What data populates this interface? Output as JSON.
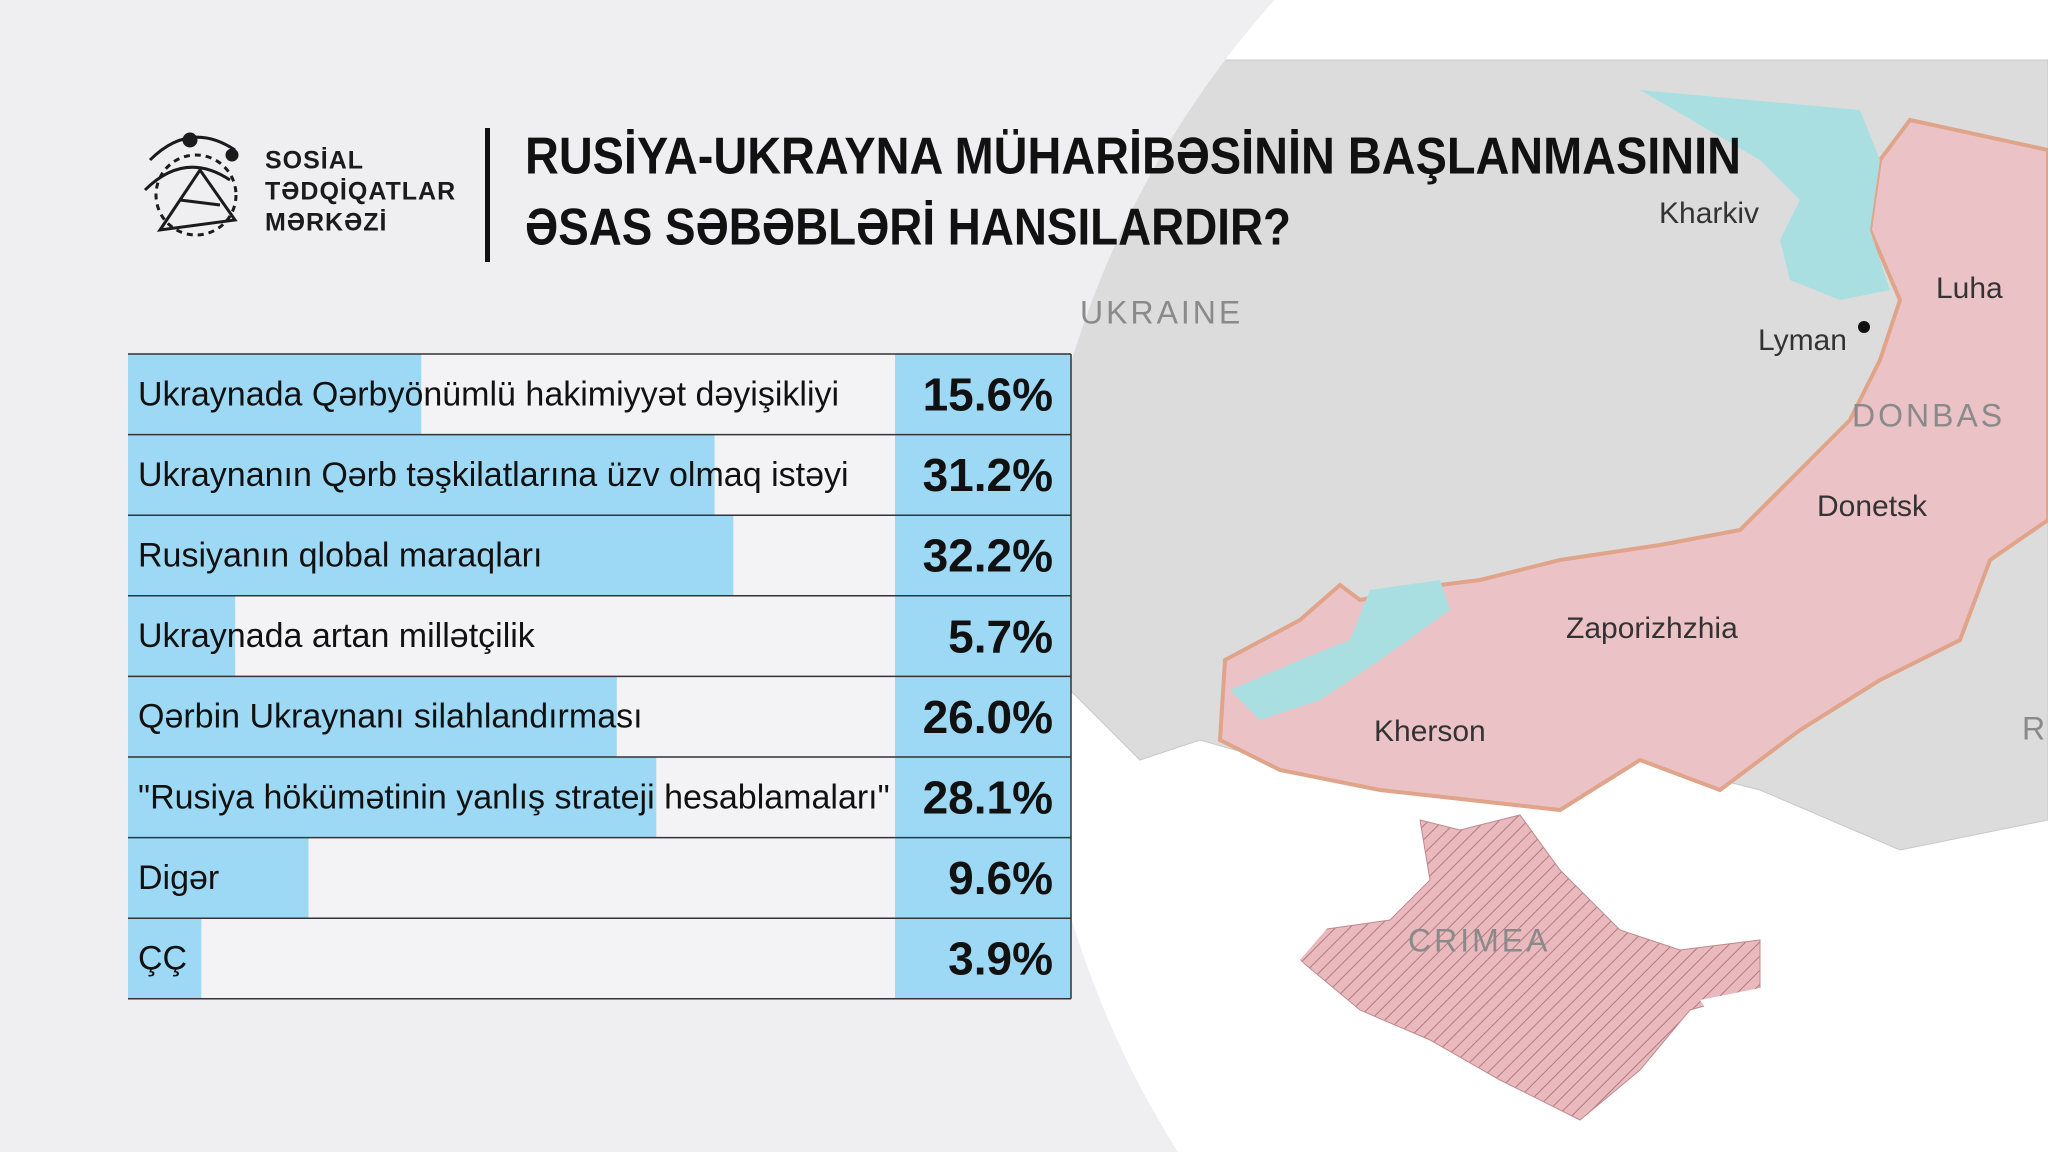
{
  "header": {
    "org": [
      "SOSİAL",
      "TƏDQİQATLAR",
      "MƏRKƏZİ"
    ]
  },
  "chart_data": {
    "type": "bar",
    "title": [
      "RUSİYA-UKRAYNA MÜHARİBƏSİNİN BAŞLANMASININ",
      "ƏSAS SƏBƏBLƏRİ HANSILARDIR?"
    ],
    "categories": [
      "Ukraynada Qərbyönümlü hakimiyyət dəyişikliyi",
      "Ukraynanın Qərb təşkilatlarına üzv olmaq istəyi",
      "Rusiyanın qlobal maraqları",
      "Ukraynada artan millətçilik",
      "Qərbin Ukraynanı silahlandırması",
      "\"Rusiya hökümətinin yanlış strateji hesablamaları\"",
      "Digər",
      "ÇÇ"
    ],
    "values": [
      15.6,
      31.2,
      32.2,
      5.7,
      26.0,
      28.1,
      9.6,
      3.9
    ],
    "value_labels": [
      "15.6%",
      "31.2%",
      "32.2%",
      "5.7%",
      "26.0%",
      "28.1%",
      "9.6%",
      "3.9%"
    ],
    "color": "#9dd9f5"
  },
  "map": {
    "labels": [
      {
        "text": "UKRAINE",
        "caps": true
      },
      {
        "text": "Kharkiv"
      },
      {
        "text": "Luha"
      },
      {
        "text": "Lyman"
      },
      {
        "text": "DONBAS",
        "caps": true
      },
      {
        "text": "Donetsk"
      },
      {
        "text": "Zaporizhzhia"
      },
      {
        "text": "Kherson"
      },
      {
        "text": "CRIMEA",
        "caps": true
      },
      {
        "text": "RU",
        "caps": true
      }
    ]
  }
}
